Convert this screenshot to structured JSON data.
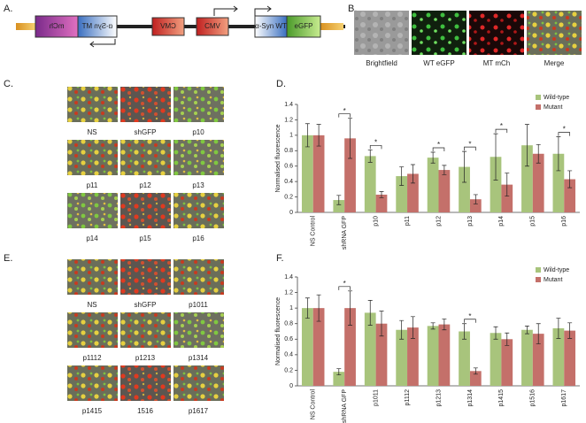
{
  "panels": {
    "a": "A.",
    "b": "B.",
    "c": "C.",
    "d": "D.",
    "e": "E.",
    "f": "F."
  },
  "construct": {
    "labels": [
      "mCh",
      "α-Syn MT",
      "CMV",
      "CMV",
      "α-Syn WT",
      "eGFP"
    ]
  },
  "images_b": [
    "Brightfield",
    "WT eGFP",
    "MT mCh",
    "Merge"
  ],
  "images_c": [
    "NS",
    "shGFP",
    "p10",
    "p11",
    "p12",
    "p13",
    "p14",
    "p15",
    "p16"
  ],
  "images_e": [
    "NS",
    "shGFP",
    "p1011",
    "p1112",
    "p1213",
    "p1314",
    "p1415",
    "1516",
    "p1617"
  ],
  "chart_data": [
    {
      "type": "bar",
      "y_label": "Normalised fluorescence",
      "categories": [
        "NS Control",
        "shRNA GFP",
        "p10",
        "p11",
        "p12",
        "p13",
        "p14",
        "p15",
        "p16"
      ],
      "series": [
        {
          "name": "Wild-type",
          "color": "#a8c47c",
          "values": [
            1.0,
            0.16,
            0.73,
            0.47,
            0.71,
            0.59,
            0.72,
            0.87,
            0.76
          ],
          "errors": [
            0.15,
            0.06,
            0.08,
            0.12,
            0.07,
            0.2,
            0.3,
            0.27,
            0.22
          ]
        },
        {
          "name": "Mutant",
          "color": "#c4706a",
          "values": [
            1.0,
            0.96,
            0.23,
            0.5,
            0.55,
            0.17,
            0.36,
            0.76,
            0.43
          ],
          "errors": [
            0.14,
            0.26,
            0.04,
            0.12,
            0.06,
            0.06,
            0.15,
            0.12,
            0.11
          ]
        }
      ],
      "significance": [
        null,
        "*",
        "*",
        null,
        "*",
        "*",
        "*",
        null,
        "*"
      ],
      "ylim": [
        0,
        1.4
      ],
      "yticks": [
        0,
        0.2,
        0.4,
        0.6,
        0.8,
        1,
        1.2,
        1.4
      ],
      "legend": "upper right"
    },
    {
      "type": "bar",
      "y_label": "Normalised fluorescence",
      "categories": [
        "NS Control",
        "shRNA GFP",
        "p1011",
        "p1112",
        "p1213",
        "p1314",
        "p1415",
        "p1516",
        "p1617"
      ],
      "series": [
        {
          "name": "Wild-type",
          "color": "#a8c47c",
          "values": [
            1.0,
            0.18,
            0.94,
            0.72,
            0.77,
            0.7,
            0.68,
            0.72,
            0.74
          ],
          "errors": [
            0.13,
            0.04,
            0.16,
            0.12,
            0.04,
            0.1,
            0.08,
            0.05,
            0.13
          ]
        },
        {
          "name": "Mutant",
          "color": "#c4706a",
          "values": [
            1.0,
            1.0,
            0.8,
            0.75,
            0.79,
            0.19,
            0.6,
            0.67,
            0.71
          ],
          "errors": [
            0.17,
            0.22,
            0.16,
            0.14,
            0.07,
            0.04,
            0.08,
            0.13,
            0.1
          ]
        }
      ],
      "significance": [
        null,
        "*",
        null,
        null,
        null,
        "*",
        null,
        null,
        null
      ],
      "ylim": [
        0,
        1.4
      ],
      "yticks": [
        0,
        0.2,
        0.4,
        0.6,
        0.8,
        1,
        1.2,
        1.4
      ],
      "legend": "upper right"
    }
  ]
}
